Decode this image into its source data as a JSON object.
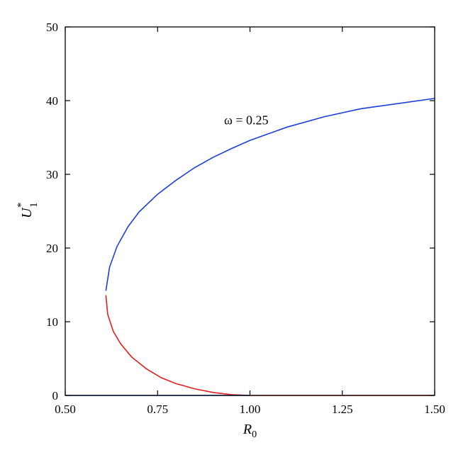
{
  "chart_data": {
    "type": "line",
    "xlabel": "R",
    "xlabel_sub": "0",
    "ylabel": "U",
    "ylabel_sup": "*",
    "ylabel_sub": "1",
    "xlim": [
      0.5,
      1.5
    ],
    "ylim": [
      0,
      50
    ],
    "xticks": [
      0.5,
      0.75,
      1.0,
      1.25,
      1.5
    ],
    "xtick_labels": [
      "0.50",
      "0.75",
      "1.00",
      "1.25",
      "1.50"
    ],
    "yticks": [
      0,
      10,
      20,
      30,
      40,
      50
    ],
    "ytick_labels": [
      "0",
      "10",
      "20",
      "30",
      "40",
      "50"
    ],
    "grid": false,
    "annotation": {
      "text": "ω = 0.25",
      "x": 0.93,
      "y": 36.8
    },
    "series": [
      {
        "color": "#1a3fe0",
        "x": [
          0.61,
          0.62,
          0.64,
          0.67,
          0.7,
          0.75,
          0.8,
          0.85,
          0.9,
          0.95,
          1.0,
          1.05,
          1.1,
          1.2,
          1.3,
          1.4,
          1.5
        ],
        "y": [
          14.2,
          17.4,
          20.2,
          22.9,
          24.9,
          27.3,
          29.2,
          30.9,
          32.3,
          33.5,
          34.6,
          35.5,
          36.4,
          37.8,
          38.9,
          39.6,
          40.3
        ]
      },
      {
        "color": "#e02020",
        "x": [
          0.61,
          0.615,
          0.63,
          0.65,
          0.68,
          0.72,
          0.76,
          0.8,
          0.85,
          0.9,
          0.95,
          1.0
        ],
        "y": [
          13.6,
          11.0,
          8.7,
          7.0,
          5.2,
          3.6,
          2.4,
          1.6,
          0.9,
          0.4,
          0.1,
          0.0
        ]
      },
      {
        "color": "#1a3fe0",
        "x": [
          0.5,
          1.0
        ],
        "y": [
          0,
          0
        ]
      },
      {
        "color": "#e02020",
        "x": [
          1.0,
          1.5
        ],
        "y": [
          0,
          0
        ]
      }
    ]
  }
}
